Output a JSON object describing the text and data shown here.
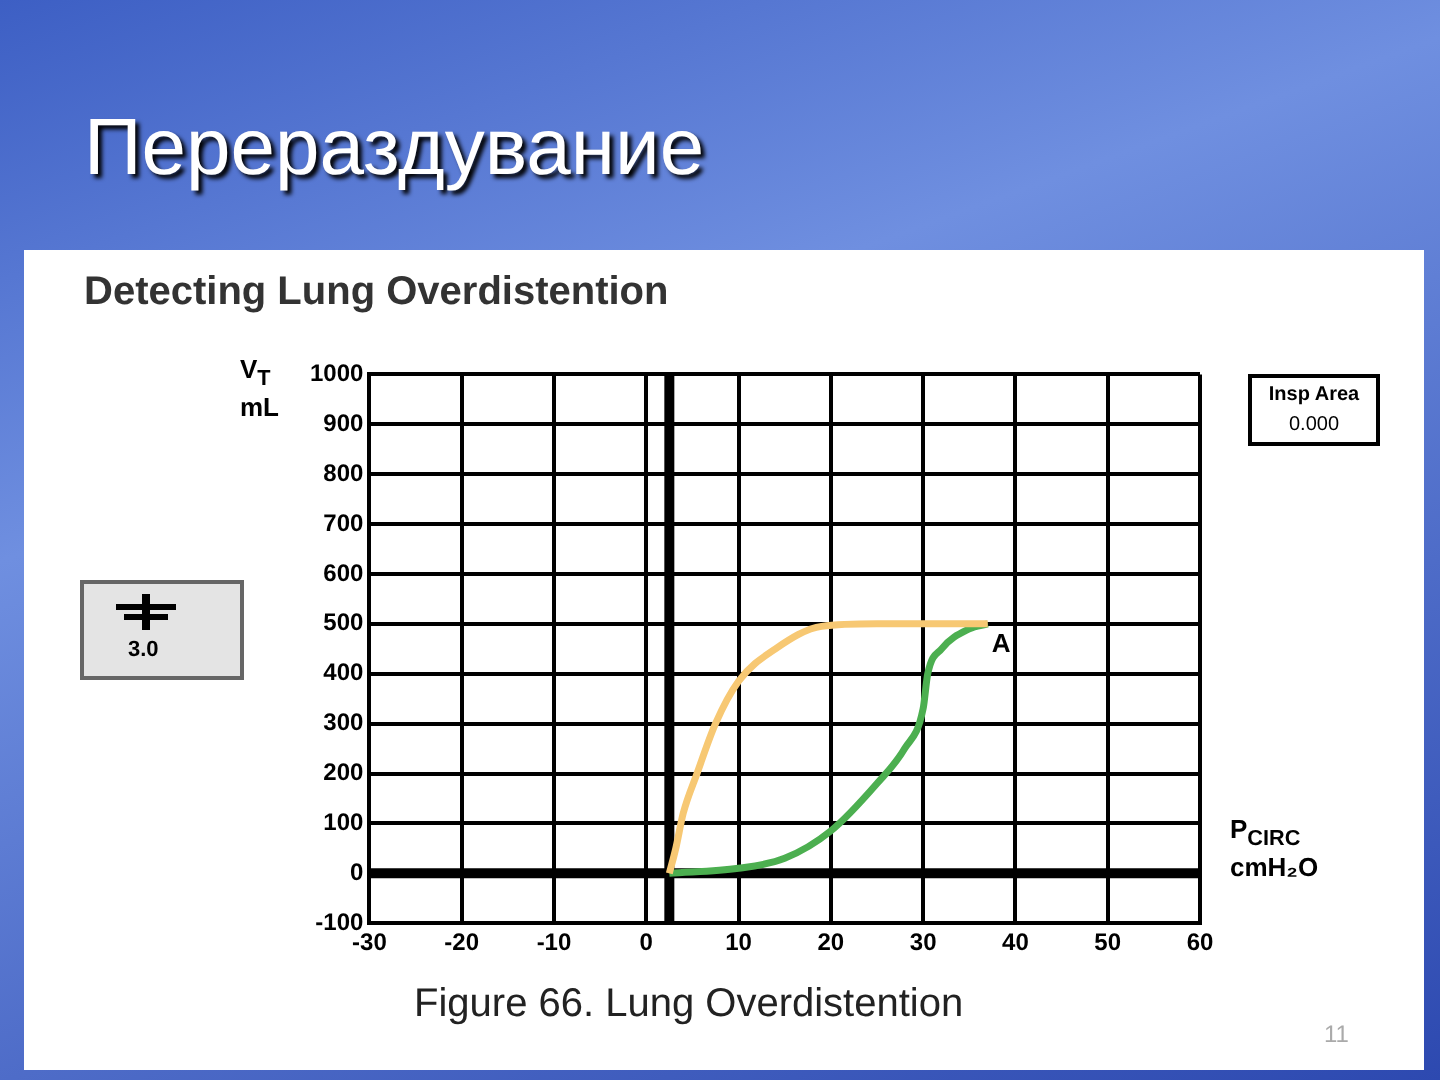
{
  "chart_data": {
    "type": "line",
    "title": "Перераздувание",
    "subtitle": "Detecting Lung Overdistention",
    "xlabel": "P$_{CIRC}$ cmH₂O",
    "ylabel": "V$_{T}$ mL",
    "xlim": [
      -30,
      60
    ],
    "xticks": [
      -30,
      -20,
      -10,
      0,
      10,
      20,
      30,
      40,
      50,
      60
    ],
    "ylim": [
      -100,
      1000
    ],
    "yticks": [
      -100,
      0,
      100,
      200,
      300,
      400,
      500,
      600,
      700,
      800,
      900,
      1000
    ],
    "grid": true,
    "marker": "none",
    "line_style": "solid",
    "series": [
      {
        "color": "#f7c873",
        "x": [
          2.5,
          3.2,
          4,
          5.5,
          7.5,
          10,
          14,
          19,
          25,
          37
        ],
        "values": [
          0,
          50,
          120,
          200,
          300,
          385,
          450,
          495,
          500,
          500
        ]
      },
      {
        "color": "#4caf50",
        "x": [
          2.5,
          10,
          15,
          20,
          25,
          28,
          30,
          30.5,
          32,
          35,
          37
        ],
        "values": [
          0,
          10,
          30,
          85,
          180,
          250,
          330,
          400,
          450,
          490,
          500
        ]
      }
    ],
    "ref_lines": [
      {
        "axis": "y",
        "value": 0,
        "color": "#000000"
      },
      {
        "axis": "x",
        "value": 2.5,
        "color": "#000000"
      }
    ],
    "annotations": [
      {
        "text": "A",
        "x": 37,
        "y": 500
      },
      "Insp Area",
      "0.000",
      "3.0",
      "Figure 66. Lung Overdistention",
      "11"
    ]
  }
}
